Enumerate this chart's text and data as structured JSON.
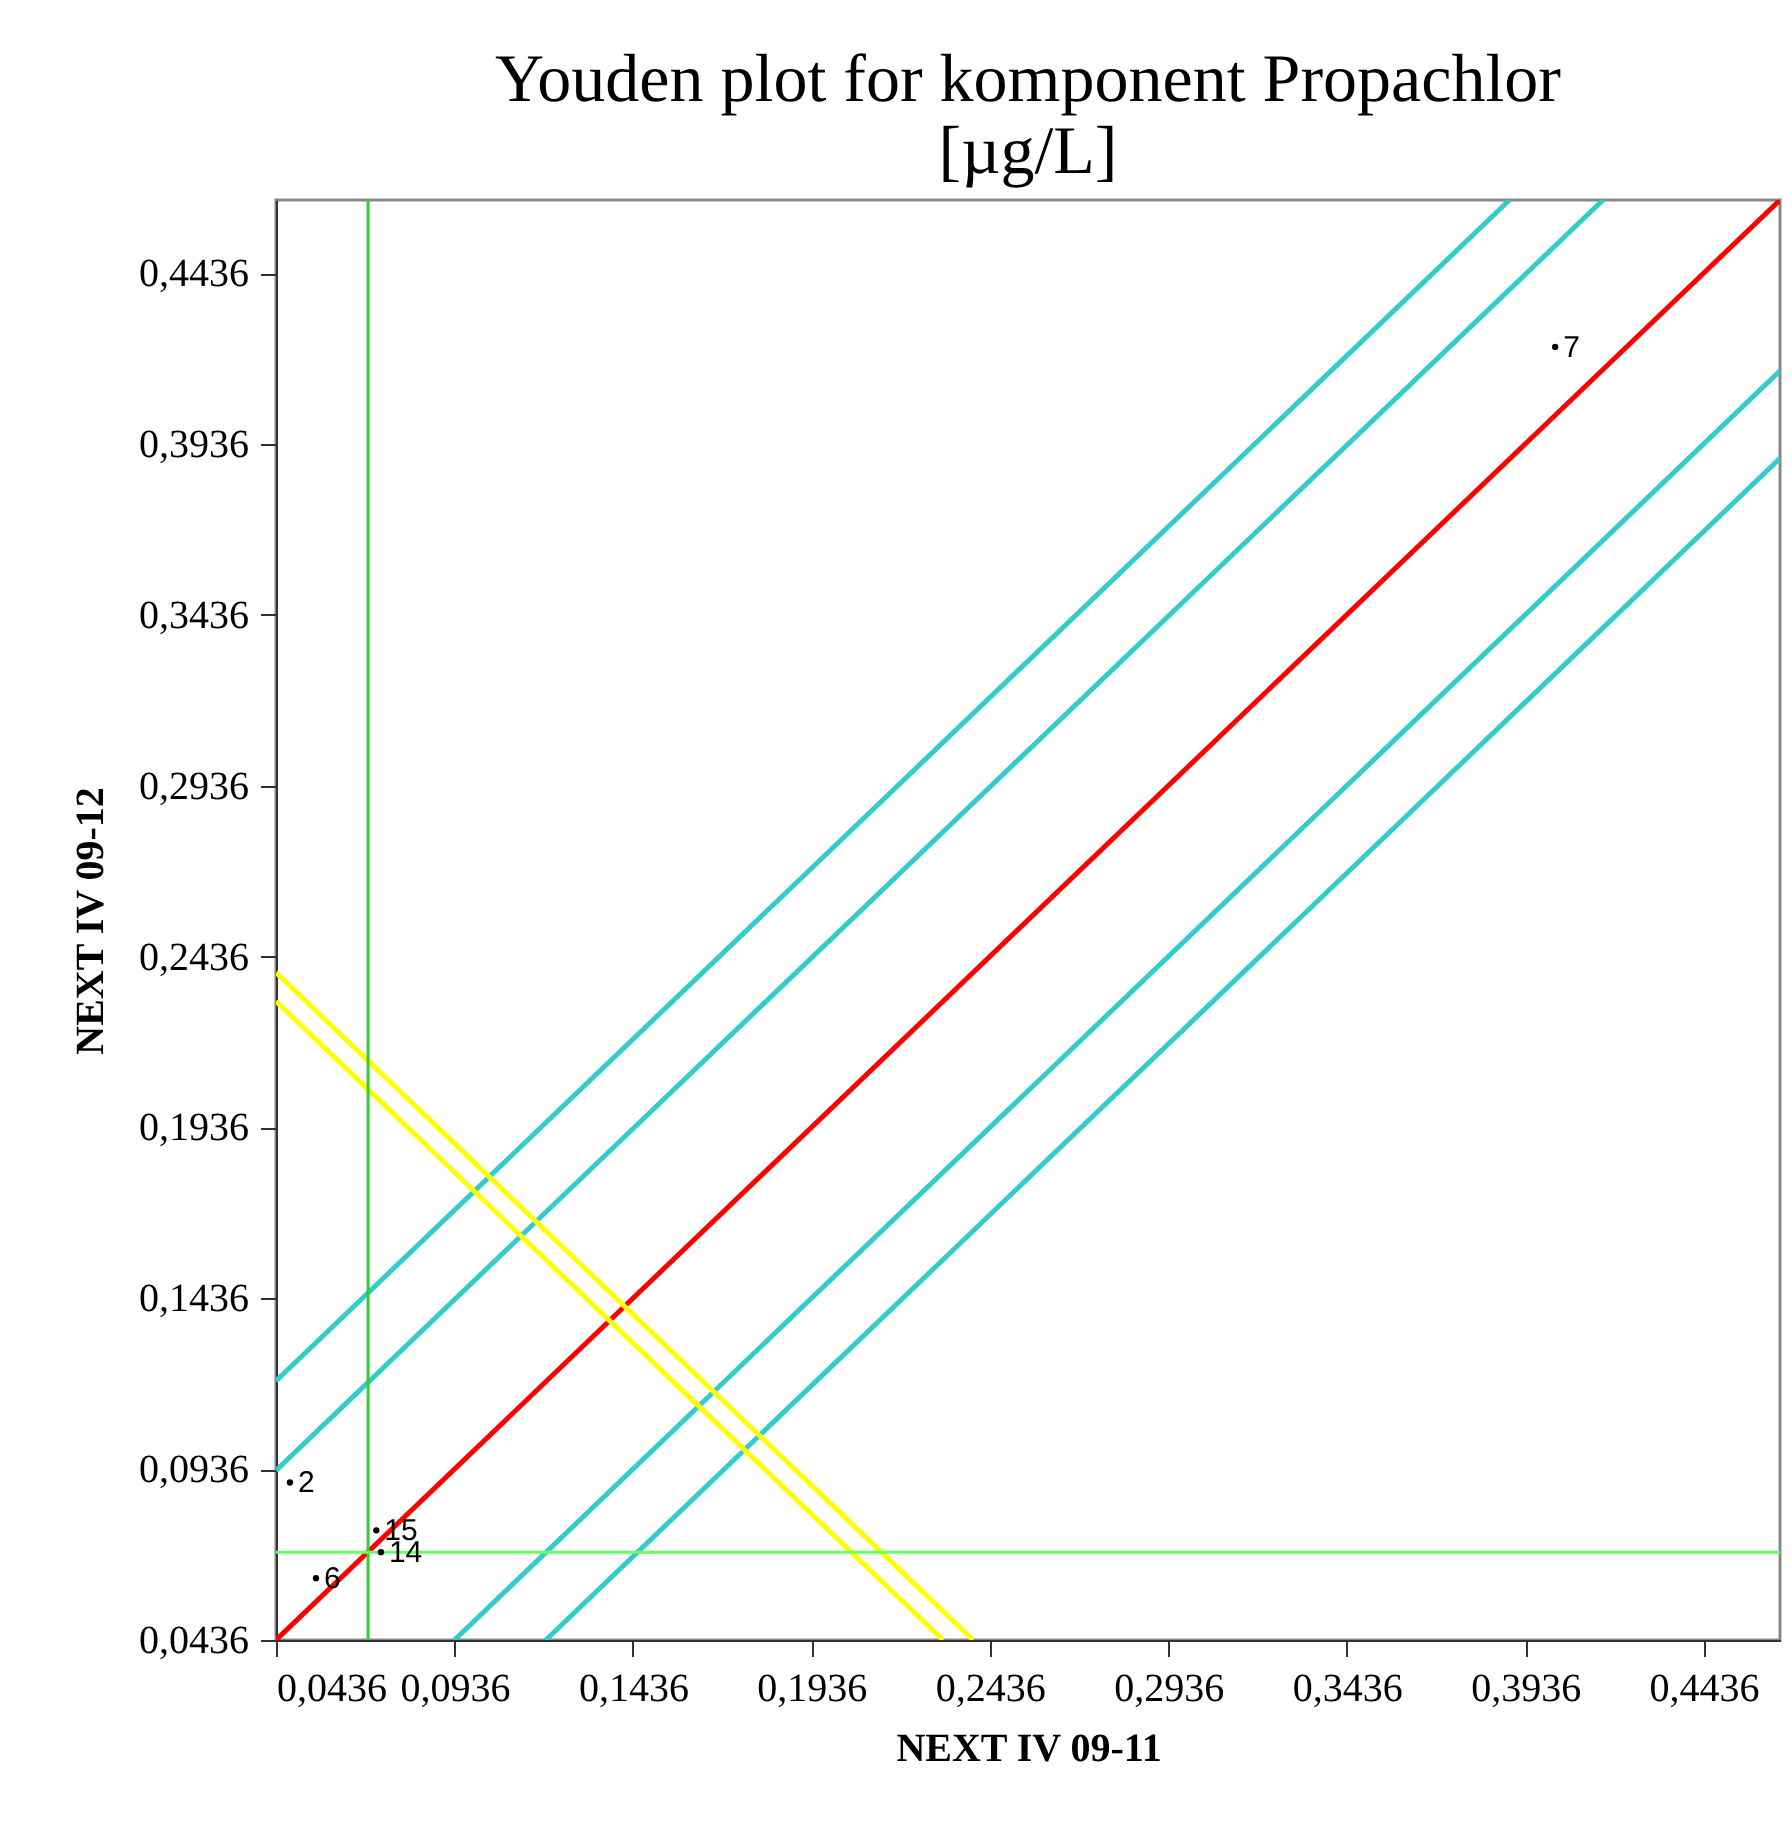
{
  "chart_data": {
    "type": "line",
    "title": "Youden plot for komponent Propachlor",
    "subtitle": "[µg/L]",
    "xlabel": "NEXT IV 09-11",
    "ylabel": "NEXT IV 09-12",
    "xlim": [
      0.0436,
      0.465
    ],
    "ylim": [
      0.0436,
      0.465
    ],
    "xticks": [
      {
        "value": 0.0436,
        "label": "0,0436"
      },
      {
        "value": 0.0936,
        "label": "0,0936"
      },
      {
        "value": 0.1436,
        "label": "0,1436"
      },
      {
        "value": 0.1936,
        "label": "0,1936"
      },
      {
        "value": 0.2436,
        "label": "0,2436"
      },
      {
        "value": 0.2936,
        "label": "0,2936"
      },
      {
        "value": 0.3436,
        "label": "0,3436"
      },
      {
        "value": 0.3936,
        "label": "0,3936"
      },
      {
        "value": 0.4436,
        "label": "0,4436"
      }
    ],
    "yticks": [
      {
        "value": 0.0436,
        "label": "0,0436"
      },
      {
        "value": 0.0936,
        "label": "0,0936"
      },
      {
        "value": 0.1436,
        "label": "0,1436"
      },
      {
        "value": 0.1936,
        "label": "0,1936"
      },
      {
        "value": 0.2436,
        "label": "0,2436"
      },
      {
        "value": 0.2936,
        "label": "0,2936"
      },
      {
        "value": 0.3436,
        "label": "0,3436"
      },
      {
        "value": 0.3936,
        "label": "0,3936"
      },
      {
        "value": 0.4436,
        "label": "0,4436"
      }
    ],
    "grid": false,
    "series": [
      {
        "color": "#33cccc",
        "x": [
          0.0436,
          0.3892
        ],
        "values": [
          0.1194,
          0.465
        ]
      },
      {
        "color": "#33cccc",
        "x": [
          0.0436,
          0.4154
        ],
        "values": [
          0.0932,
          0.465
        ]
      },
      {
        "color": "#ff0000",
        "x": [
          0.0436,
          0.465
        ],
        "values": [
          0.0436,
          0.465
        ]
      },
      {
        "color": "#33cccc",
        "x": [
          0.0936,
          0.465
        ],
        "values": [
          0.0436,
          0.415
        ]
      },
      {
        "color": "#33cccc",
        "x": [
          0.1192,
          0.465
        ],
        "values": [
          0.0436,
          0.3894
        ]
      },
      {
        "color": "#ffff00",
        "x": [
          0.0436,
          0.2389
        ],
        "values": [
          0.2389,
          0.0436
        ]
      },
      {
        "color": "#ffff00",
        "x": [
          0.0436,
          0.2305
        ],
        "values": [
          0.2305,
          0.0436
        ]
      },
      {
        "type": "scatter",
        "color": "#000000",
        "marker": "circle",
        "x": [
          0.0475,
          0.0548,
          0.073,
          0.0717,
          0.402
        ],
        "values": [
          0.0897,
          0.0617,
          0.0693,
          0.0757,
          0.422
        ]
      }
    ],
    "annotations": [
      {
        "text": "2",
        "x": 0.0475,
        "y": 0.0897
      },
      {
        "text": "6",
        "x": 0.0548,
        "y": 0.0617
      },
      {
        "text": "14",
        "x": 0.073,
        "y": 0.0693
      },
      {
        "text": "15",
        "x": 0.0717,
        "y": 0.0757
      },
      {
        "text": "7",
        "x": 0.402,
        "y": 0.422
      }
    ],
    "ref_lines": [
      {
        "axis": "x",
        "value": 0.0694,
        "color": "#33cc33"
      },
      {
        "axis": "y",
        "value": 0.0693,
        "color": "#66ff66"
      }
    ]
  }
}
